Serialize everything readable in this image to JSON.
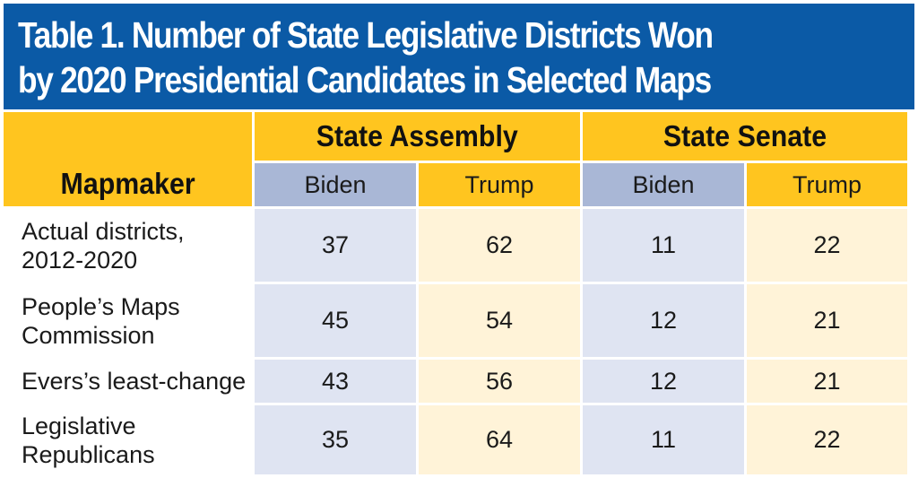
{
  "title": {
    "line1": "Table 1. Number of State Legislative Districts Won",
    "line2": "by 2020 Presidential Candidates in Selected Maps"
  },
  "header": {
    "mapmaker": "Mapmaker",
    "assembly": "State Assembly",
    "senate": "State Senate",
    "biden": "Biden",
    "trump": "Trump"
  },
  "rows": [
    {
      "label_lines": [
        "Actual districts,",
        "2012-2020"
      ],
      "assembly_biden": "37",
      "assembly_trump": "62",
      "senate_biden": "11",
      "senate_trump": "22"
    },
    {
      "label_lines": [
        "People’s Maps",
        "Commission"
      ],
      "assembly_biden": "45",
      "assembly_trump": "54",
      "senate_biden": "12",
      "senate_trump": "21"
    },
    {
      "label_lines": [
        "Evers’s least-change"
      ],
      "assembly_biden": "43",
      "assembly_trump": "56",
      "senate_biden": "12",
      "senate_trump": "21"
    },
    {
      "label_lines": [
        "Legislative",
        "Republicans"
      ],
      "assembly_biden": "35",
      "assembly_trump": "64",
      "senate_biden": "11",
      "senate_trump": "22"
    }
  ],
  "colors": {
    "title_bg": "#0b5aa6",
    "header_gold": "#ffc51f",
    "biden_header": "#a9b7d6",
    "biden_cell": "#dfe4f2",
    "trump_cell": "#fff3d8"
  }
}
